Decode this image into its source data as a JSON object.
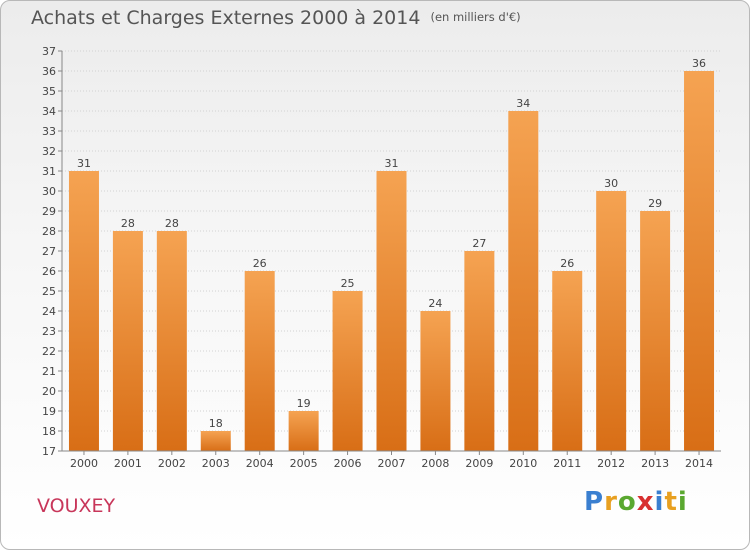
{
  "header": {
    "title": "Achats et Charges Externes 2000 à 2014",
    "unit": "(en milliers d'€)"
  },
  "footer": {
    "city": "VOUXEY",
    "logo_text": [
      "P",
      "r",
      "o",
      "x",
      "i",
      "t",
      "i"
    ],
    "logo_colors": [
      "#3a7fd0",
      "#e8a020",
      "#5aa830",
      "#d83030",
      "#3a7fd0",
      "#e8a020",
      "#5aa830"
    ]
  },
  "chart_data": {
    "type": "bar",
    "title": "Achats et Charges Externes 2000 à 2014",
    "subtitle": "(en milliers d'€)",
    "categories": [
      "2000",
      "2001",
      "2002",
      "2003",
      "2004",
      "2005",
      "2006",
      "2007",
      "2008",
      "2009",
      "2010",
      "2011",
      "2012",
      "2013",
      "2014"
    ],
    "values": [
      31,
      28,
      28,
      18,
      26,
      19,
      25,
      31,
      24,
      27,
      34,
      26,
      30,
      29,
      36
    ],
    "ylim": [
      17,
      37
    ],
    "yticks": [
      17,
      18,
      19,
      20,
      21,
      22,
      23,
      24,
      25,
      26,
      27,
      28,
      29,
      30,
      31,
      32,
      33,
      34,
      35,
      36,
      37
    ],
    "grid": true,
    "bar_color_top": "#f5a352",
    "bar_color_bottom": "#d86e16"
  }
}
